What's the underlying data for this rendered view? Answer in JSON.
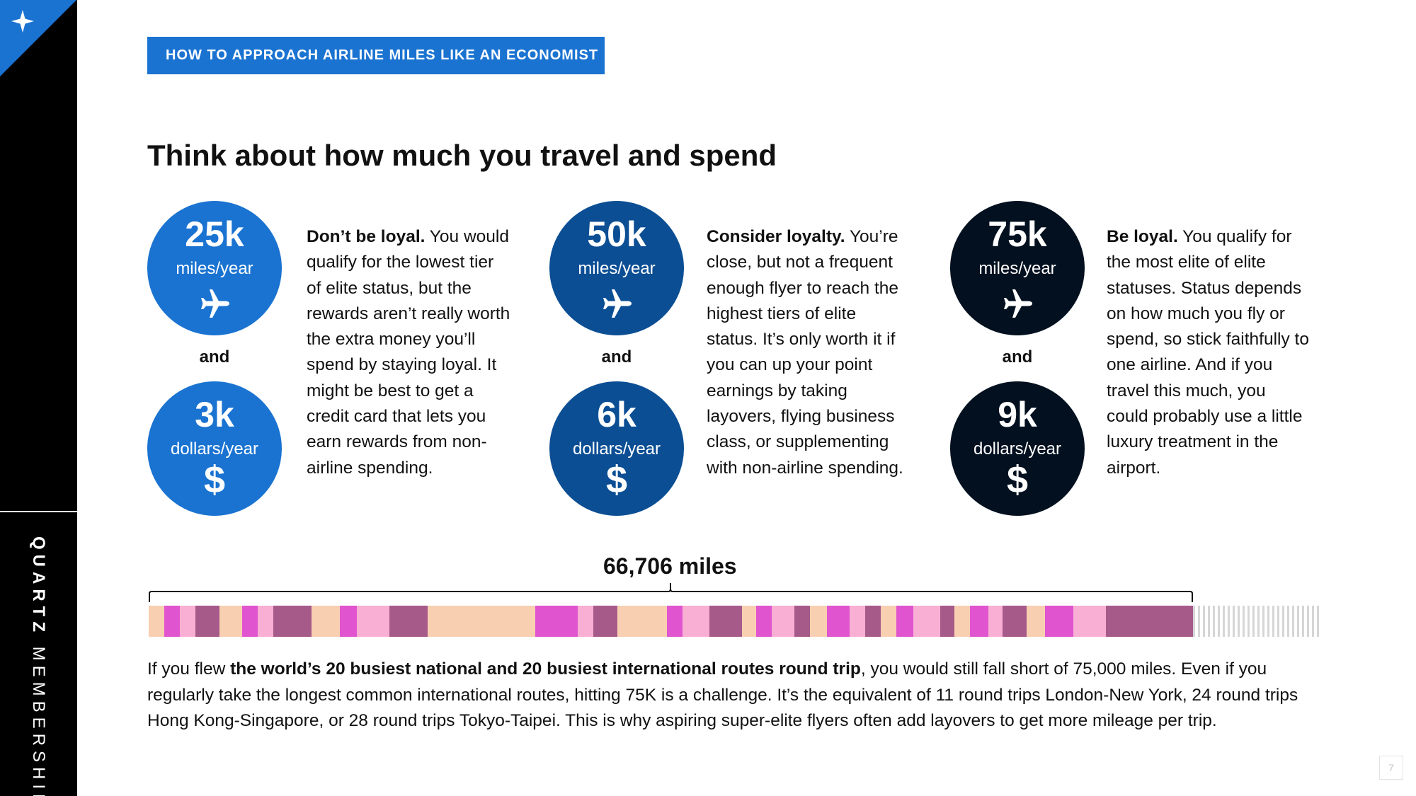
{
  "sidebar": {
    "brand_bold": "QUARTZ",
    "brand_light": "MEMBERSHIP",
    "corner_icon": "sparkle-icon",
    "corner_color": "#1A73D1"
  },
  "tag": "HOW TO APPROACH AIRLINE MILES LIKE AN ECONOMIST",
  "heading": "Think about how much you travel and spend",
  "connector": "and",
  "tiers": [
    {
      "color": "#1A73D1",
      "miles": "25k",
      "miles_unit": "miles/year",
      "dollars": "3k",
      "dollars_unit": "dollars/year",
      "lead": "Don’t be loyal.",
      "text": " You would qualify for the lowest tier of elite status, but the rewards aren’t really worth the extra money you’ll spend by staying loyal. It might be best to get a credit card that lets you earn rewards from non-airline spending."
    },
    {
      "color": "#0B4E94",
      "miles": "50k",
      "miles_unit": "miles/year",
      "dollars": "6k",
      "dollars_unit": "dollars/year",
      "lead": "Consider loyalty.",
      "text": " You’re close, but not a frequent enough flyer to reach the highest tiers of elite status. It’s only worth it if you can up your point earnings by taking layovers, flying business class, or supplementing with non-airline spending."
    },
    {
      "color": "#02101F",
      "miles": "75k",
      "miles_unit": "miles/year",
      "dollars": "9k",
      "dollars_unit": "dollars/year",
      "lead": "Be loyal.",
      "text": " You qualify for the most elite of elite statuses. Status depends on how much you fly or spend, so stick faithfully to one airline. And if you travel this much, you could probably use a little luxury treatment in the airport."
    }
  ],
  "icons": {
    "plane": "airplane-icon",
    "dollar": "$"
  },
  "miles_label": "66,706 miles",
  "miles_total": 66706,
  "miles_target": 75000,
  "route_colors": {
    "peach": "#F8CFB0",
    "magenta": "#E055CF",
    "pink": "#F9AFD3",
    "plum": "#A65A8A"
  },
  "footnote": {
    "part1": "If you flew ",
    "bold": "the world’s 20 busiest national and 20 busiest international routes round trip",
    "part2": ", you would still fall short of 75,000 miles. Even if you regularly take the longest common international routes, hitting 75K is a challenge. It’s the equivalent of 11 round trips London-New York, 24 round trips Hong Kong-Singapore, or 28 round trips Tokyo-Taipei. This is why aspiring super-elite flyers often add layovers to get more mileage per trip."
  },
  "page_number": "7"
}
